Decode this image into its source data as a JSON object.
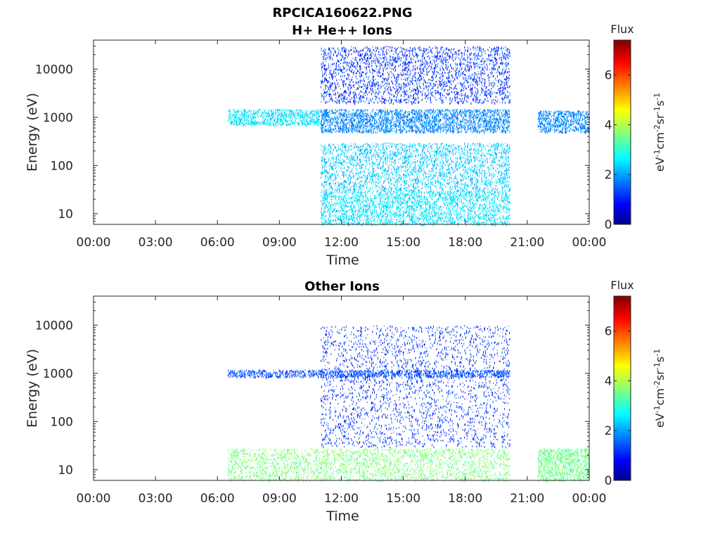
{
  "figure_title": "RPCICA160622.PNG",
  "chart_data": [
    {
      "type": "heatmap",
      "title": "H+ He++ Ions",
      "xlabel": "Time",
      "ylabel": "Energy (eV)",
      "xticks": [
        "00:00",
        "03:00",
        "06:00",
        "09:00",
        "12:00",
        "15:00",
        "18:00",
        "21:00",
        "00:00"
      ],
      "xlim_hours": [
        0,
        24
      ],
      "yscale": "log",
      "yticks": [
        {
          "value": 10,
          "label": "10"
        },
        {
          "value": 100,
          "label": "100"
        },
        {
          "value": 1000,
          "label": "1000"
        },
        {
          "value": 10000,
          "label": "10000"
        }
      ],
      "ylim": [
        6,
        40000
      ],
      "colorbar": {
        "title": "Flux",
        "unit": "eV-1cm-2sr-1s-1",
        "ticks": [
          "0",
          "2",
          "4",
          "6"
        ],
        "range": [
          0,
          7.4
        ],
        "colormap": "jet"
      },
      "data_coverage_hours": [
        [
          6.5,
          20.15
        ],
        [
          21.5,
          24.0
        ]
      ],
      "features": [
        {
          "hours": [
            6.5,
            11.0
          ],
          "energy_eV": [
            700,
            1500
          ],
          "flux": 2.6
        },
        {
          "hours": [
            11.0,
            20.15
          ],
          "energy_eV": [
            500,
            1500
          ],
          "flux": 1.9
        },
        {
          "hours": [
            21.5,
            24.0
          ],
          "energy_eV": [
            500,
            1400
          ],
          "flux": 1.9
        },
        {
          "hours": [
            11.0,
            20.15
          ],
          "energy_eV": [
            2000,
            30000
          ],
          "flux": 1.3
        },
        {
          "hours": [
            11.0,
            20.15
          ],
          "energy_eV": [
            6,
            30
          ],
          "flux": 2.6
        },
        {
          "hours": [
            11.0,
            20.15
          ],
          "energy_eV": [
            30,
            300
          ],
          "flux": 2.4
        }
      ]
    },
    {
      "type": "heatmap",
      "title": "Other Ions",
      "xlabel": "Time",
      "ylabel": "Energy (eV)",
      "xticks": [
        "00:00",
        "03:00",
        "06:00",
        "09:00",
        "12:00",
        "15:00",
        "18:00",
        "21:00",
        "00:00"
      ],
      "xlim_hours": [
        0,
        24
      ],
      "yscale": "log",
      "yticks": [
        {
          "value": 10,
          "label": "10"
        },
        {
          "value": 100,
          "label": "100"
        },
        {
          "value": 1000,
          "label": "1000"
        },
        {
          "value": 10000,
          "label": "10000"
        }
      ],
      "ylim": [
        6,
        40000
      ],
      "colorbar": {
        "title": "Flux",
        "unit": "eV-1cm-2sr-1s-1",
        "ticks": [
          "0",
          "2",
          "4",
          "6"
        ],
        "range": [
          0,
          7.4
        ],
        "colormap": "jet"
      },
      "data_coverage_hours": [
        [
          6.5,
          20.15
        ],
        [
          21.5,
          24.0
        ]
      ],
      "features": [
        {
          "hours": [
            6.5,
            20.15
          ],
          "energy_eV": [
            6,
            28
          ],
          "flux": 3.7
        },
        {
          "hours": [
            21.5,
            24.0
          ],
          "energy_eV": [
            6,
            28
          ],
          "flux": 3.6
        },
        {
          "hours": [
            6.5,
            20.15
          ],
          "energy_eV": [
            850,
            1200
          ],
          "flux": 1.5
        },
        {
          "hours": [
            11.0,
            20.15
          ],
          "energy_eV": [
            30,
            10000
          ],
          "flux": 1.3
        }
      ]
    }
  ]
}
